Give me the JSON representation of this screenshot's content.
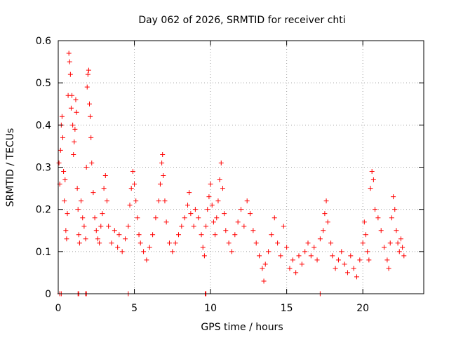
{
  "chart_data": {
    "type": "scatter",
    "title": "Day 062 of 2026, SRMTID for receiver chti",
    "xlabel": "GPS time / hours",
    "ylabel": "SRMTID / TECUs",
    "xlim": [
      0,
      24
    ],
    "ylim": [
      0,
      0.6
    ],
    "xticks": [
      0,
      5,
      10,
      15,
      20
    ],
    "xtick_labels": [
      "0",
      "5",
      "10",
      "15",
      "20"
    ],
    "yticks": [
      0,
      0.1,
      0.2,
      0.3,
      0.4,
      0.5,
      0.6
    ],
    "ytick_labels": [
      "0",
      "0.1",
      "0.2",
      "0.3",
      "0.4",
      "0.5",
      "0.6"
    ],
    "grid": true,
    "marker": "+",
    "series": [
      {
        "name": "SRMTID",
        "color": "#ff0000",
        "points": [
          [
            0.05,
            0.31
          ],
          [
            0.1,
            0.26
          ],
          [
            0.15,
            0.34
          ],
          [
            0.2,
            0.4
          ],
          [
            0.25,
            0.42
          ],
          [
            0.3,
            0.37
          ],
          [
            0.35,
            0.29
          ],
          [
            0.4,
            0.22
          ],
          [
            0.45,
            0.27
          ],
          [
            0.5,
            0.15
          ],
          [
            0.55,
            0.13
          ],
          [
            0.6,
            0.19
          ],
          [
            0.65,
            0.47
          ],
          [
            0.7,
            0.57
          ],
          [
            0.75,
            0.55
          ],
          [
            0.8,
            0.52
          ],
          [
            0.85,
            0.44
          ],
          [
            0.9,
            0.47
          ],
          [
            0.95,
            0.4
          ],
          [
            1.0,
            0.33
          ],
          [
            1.05,
            0.36
          ],
          [
            1.1,
            0.39
          ],
          [
            1.15,
            0.46
          ],
          [
            1.2,
            0.43
          ],
          [
            1.25,
            0.25
          ],
          [
            1.3,
            0.2
          ],
          [
            1.35,
            0.14
          ],
          [
            1.4,
            0.12
          ],
          [
            1.5,
            0.22
          ],
          [
            1.6,
            0.18
          ],
          [
            1.7,
            0.16
          ],
          [
            1.8,
            0.13
          ],
          [
            1.85,
            0.3
          ],
          [
            1.9,
            0.49
          ],
          [
            1.95,
            0.52
          ],
          [
            2.0,
            0.53
          ],
          [
            2.05,
            0.45
          ],
          [
            2.1,
            0.42
          ],
          [
            2.15,
            0.37
          ],
          [
            2.2,
            0.31
          ],
          [
            2.3,
            0.24
          ],
          [
            2.4,
            0.18
          ],
          [
            2.5,
            0.15
          ],
          [
            2.6,
            0.13
          ],
          [
            2.7,
            0.12
          ],
          [
            2.8,
            0.16
          ],
          [
            2.9,
            0.19
          ],
          [
            3.0,
            0.25
          ],
          [
            3.1,
            0.28
          ],
          [
            3.2,
            0.22
          ],
          [
            3.3,
            0.16
          ],
          [
            3.5,
            0.12
          ],
          [
            3.7,
            0.15
          ],
          [
            3.9,
            0.11
          ],
          [
            4.0,
            0.14
          ],
          [
            4.2,
            0.1
          ],
          [
            4.4,
            0.13
          ],
          [
            4.6,
            0.16
          ],
          [
            4.7,
            0.21
          ],
          [
            4.8,
            0.25
          ],
          [
            4.9,
            0.29
          ],
          [
            5.0,
            0.26
          ],
          [
            5.1,
            0.22
          ],
          [
            5.2,
            0.18
          ],
          [
            5.3,
            0.14
          ],
          [
            5.4,
            0.12
          ],
          [
            5.6,
            0.1
          ],
          [
            5.8,
            0.08
          ],
          [
            6.0,
            0.11
          ],
          [
            6.2,
            0.14
          ],
          [
            6.4,
            0.18
          ],
          [
            6.6,
            0.22
          ],
          [
            6.7,
            0.26
          ],
          [
            6.8,
            0.31
          ],
          [
            6.85,
            0.33
          ],
          [
            6.9,
            0.28
          ],
          [
            7.0,
            0.22
          ],
          [
            7.1,
            0.17
          ],
          [
            7.3,
            0.12
          ],
          [
            7.5,
            0.1
          ],
          [
            7.7,
            0.12
          ],
          [
            7.9,
            0.14
          ],
          [
            8.1,
            0.16
          ],
          [
            8.3,
            0.18
          ],
          [
            8.5,
            0.21
          ],
          [
            8.6,
            0.24
          ],
          [
            8.7,
            0.19
          ],
          [
            8.9,
            0.16
          ],
          [
            9.0,
            0.2
          ],
          [
            9.2,
            0.18
          ],
          [
            9.4,
            0.14
          ],
          [
            9.5,
            0.11
          ],
          [
            9.6,
            0.09
          ],
          [
            9.7,
            0.16
          ],
          [
            9.8,
            0.2
          ],
          [
            9.9,
            0.23
          ],
          [
            10.0,
            0.26
          ],
          [
            10.1,
            0.21
          ],
          [
            10.2,
            0.17
          ],
          [
            10.3,
            0.14
          ],
          [
            10.4,
            0.18
          ],
          [
            10.5,
            0.22
          ],
          [
            10.6,
            0.27
          ],
          [
            10.7,
            0.31
          ],
          [
            10.8,
            0.25
          ],
          [
            10.9,
            0.19
          ],
          [
            11.0,
            0.15
          ],
          [
            11.2,
            0.12
          ],
          [
            11.4,
            0.1
          ],
          [
            11.6,
            0.14
          ],
          [
            11.8,
            0.17
          ],
          [
            12.0,
            0.2
          ],
          [
            12.2,
            0.16
          ],
          [
            12.4,
            0.22
          ],
          [
            12.6,
            0.19
          ],
          [
            12.8,
            0.15
          ],
          [
            13.0,
            0.12
          ],
          [
            13.2,
            0.09
          ],
          [
            13.4,
            0.06
          ],
          [
            13.5,
            0.03
          ],
          [
            13.6,
            0.07
          ],
          [
            13.8,
            0.1
          ],
          [
            14.0,
            0.14
          ],
          [
            14.2,
            0.18
          ],
          [
            14.4,
            0.12
          ],
          [
            14.6,
            0.09
          ],
          [
            14.8,
            0.16
          ],
          [
            15.0,
            0.11
          ],
          [
            15.2,
            0.06
          ],
          [
            15.4,
            0.08
          ],
          [
            15.6,
            0.05
          ],
          [
            15.8,
            0.09
          ],
          [
            16.0,
            0.07
          ],
          [
            16.2,
            0.1
          ],
          [
            16.4,
            0.12
          ],
          [
            16.6,
            0.09
          ],
          [
            16.8,
            0.11
          ],
          [
            17.0,
            0.08
          ],
          [
            17.2,
            0.13
          ],
          [
            17.4,
            0.15
          ],
          [
            17.5,
            0.19
          ],
          [
            17.6,
            0.22
          ],
          [
            17.7,
            0.17
          ],
          [
            17.9,
            0.12
          ],
          [
            18.0,
            0.09
          ],
          [
            18.2,
            0.06
          ],
          [
            18.4,
            0.08
          ],
          [
            18.6,
            0.1
          ],
          [
            18.8,
            0.07
          ],
          [
            19.0,
            0.05
          ],
          [
            19.2,
            0.09
          ],
          [
            19.4,
            0.06
          ],
          [
            19.6,
            0.04
          ],
          [
            19.8,
            0.08
          ],
          [
            20.0,
            0.12
          ],
          [
            20.1,
            0.17
          ],
          [
            20.2,
            0.14
          ],
          [
            20.3,
            0.1
          ],
          [
            20.4,
            0.08
          ],
          [
            20.5,
            0.25
          ],
          [
            20.6,
            0.29
          ],
          [
            20.7,
            0.27
          ],
          [
            20.8,
            0.2
          ],
          [
            21.0,
            0.18
          ],
          [
            21.2,
            0.15
          ],
          [
            21.4,
            0.11
          ],
          [
            21.6,
            0.08
          ],
          [
            21.7,
            0.06
          ],
          [
            21.8,
            0.12
          ],
          [
            21.9,
            0.18
          ],
          [
            22.0,
            0.23
          ],
          [
            22.1,
            0.2
          ],
          [
            22.2,
            0.15
          ],
          [
            22.3,
            0.12
          ],
          [
            22.4,
            0.1
          ],
          [
            22.5,
            0.13
          ],
          [
            22.6,
            0.11
          ],
          [
            22.7,
            0.09
          ]
        ],
        "zero_points": [
          [
            0.1,
            0
          ],
          [
            0.2,
            0
          ],
          [
            1.3,
            0
          ],
          [
            1.35,
            0
          ],
          [
            1.8,
            0
          ],
          [
            1.85,
            0
          ],
          [
            4.6,
            0
          ],
          [
            9.65,
            0
          ],
          [
            9.7,
            0
          ],
          [
            17.2,
            0
          ]
        ]
      }
    ]
  }
}
